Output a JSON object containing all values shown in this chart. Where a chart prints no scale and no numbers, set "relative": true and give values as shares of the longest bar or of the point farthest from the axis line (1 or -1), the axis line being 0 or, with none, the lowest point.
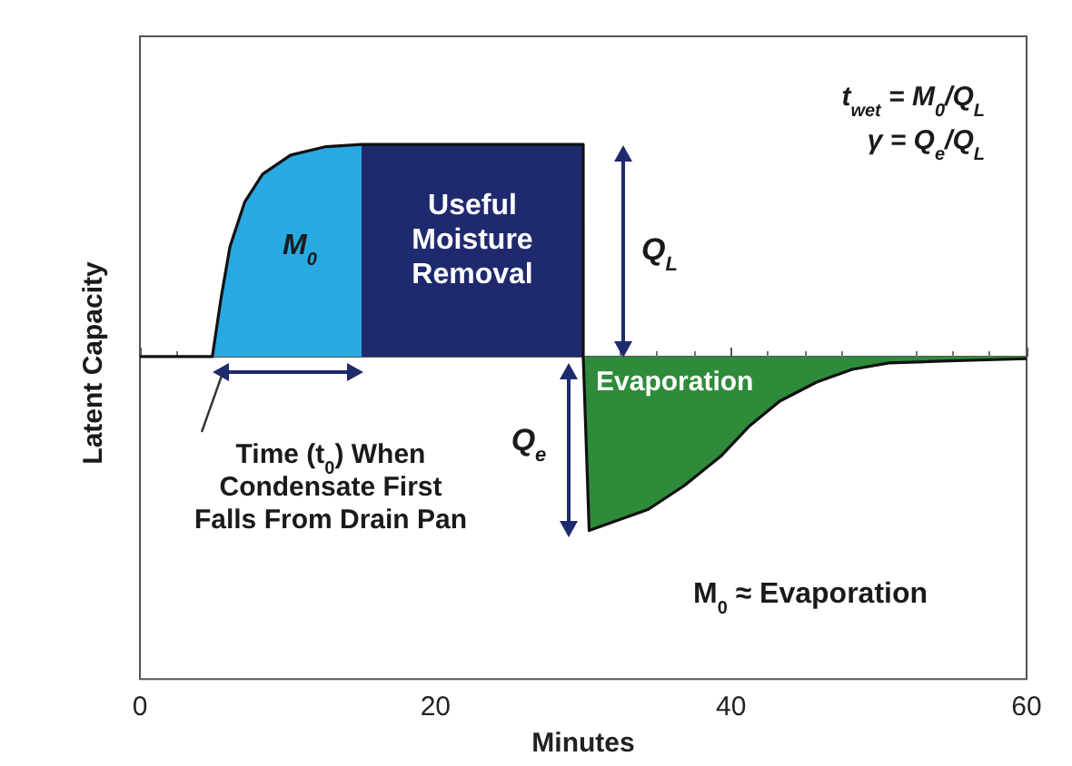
{
  "chart_data": {
    "type": "area",
    "relative": true,
    "xlabel": "Minutes",
    "ylabel": "Latent Capacity",
    "xlim": [
      0,
      60
    ],
    "xticks": [
      0,
      20,
      40,
      60
    ],
    "marker": "none",
    "series": [
      {
        "color": "#29a9e1",
        "x": [
          0,
          4.9,
          5.5,
          6.1,
          7.1,
          8.3,
          10.2,
          12.6,
          15
        ],
        "values": [
          0,
          0,
          0.28,
          0.52,
          0.73,
          0.86,
          0.95,
          0.99,
          1
        ]
      },
      {
        "color": "#1f2a6e",
        "x": [
          15,
          30,
          30
        ],
        "values": [
          1,
          1,
          0
        ]
      },
      {
        "color": "#2e8b3a",
        "x": [
          30,
          30.4,
          34.4,
          36.8,
          39.3,
          41.2,
          43.3,
          45.8,
          48.2,
          50.7,
          54.7,
          60
        ],
        "values": [
          0,
          -0.82,
          -0.72,
          -0.61,
          -0.47,
          -0.33,
          -0.21,
          -0.12,
          -0.06,
          -0.03,
          -0.02,
          -0.01
        ]
      }
    ],
    "annotations": [
      "M$_{0}$",
      "Useful Moisture Removal",
      "Q$_{L}$",
      "Q$_{e}$",
      "Evaporation",
      "Time (t$_{0}$) When Condensate First Falls From Drain Pan",
      "M$_{0}$ ≈ Evaporation",
      "t$_{wet}$ = M$_{0}$/Q$_{L}$",
      "γ = Q$_{e}$/Q$_{L}$"
    ]
  }
}
